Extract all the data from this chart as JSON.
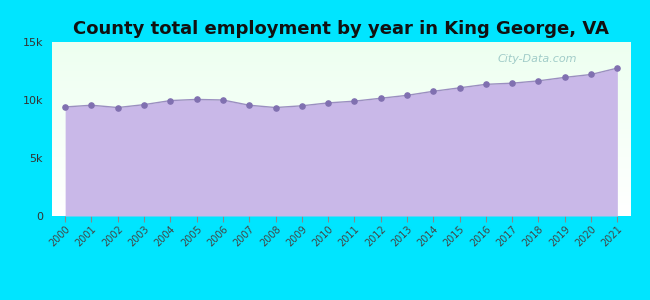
{
  "title": "County total employment by year in King George, VA",
  "years": [
    2000,
    2001,
    2002,
    2003,
    2004,
    2005,
    2006,
    2007,
    2008,
    2009,
    2010,
    2011,
    2012,
    2013,
    2014,
    2015,
    2016,
    2017,
    2018,
    2019,
    2020,
    2021
  ],
  "values": [
    9400,
    9550,
    9350,
    9600,
    9950,
    10050,
    10000,
    9550,
    9350,
    9500,
    9750,
    9900,
    10150,
    10400,
    10750,
    11050,
    11350,
    11450,
    11650,
    11950,
    12200,
    12750
  ],
  "line_color": "#9b8fc0",
  "fill_color": "#c9b8e8",
  "fill_alpha": 1.0,
  "marker_color": "#8070b0",
  "bg_color": "#00e5ff",
  "plot_bg_top_color": "#edfff0",
  "plot_bg_bottom_color": "#ffffff",
  "title_fontsize": 13,
  "title_fontweight": "bold",
  "ylim": [
    0,
    15000
  ],
  "yticks": [
    0,
    5000,
    10000,
    15000
  ],
  "ytick_labels": [
    "0",
    "5k",
    "10k",
    "15k"
  ],
  "watermark": "City-Data.com"
}
